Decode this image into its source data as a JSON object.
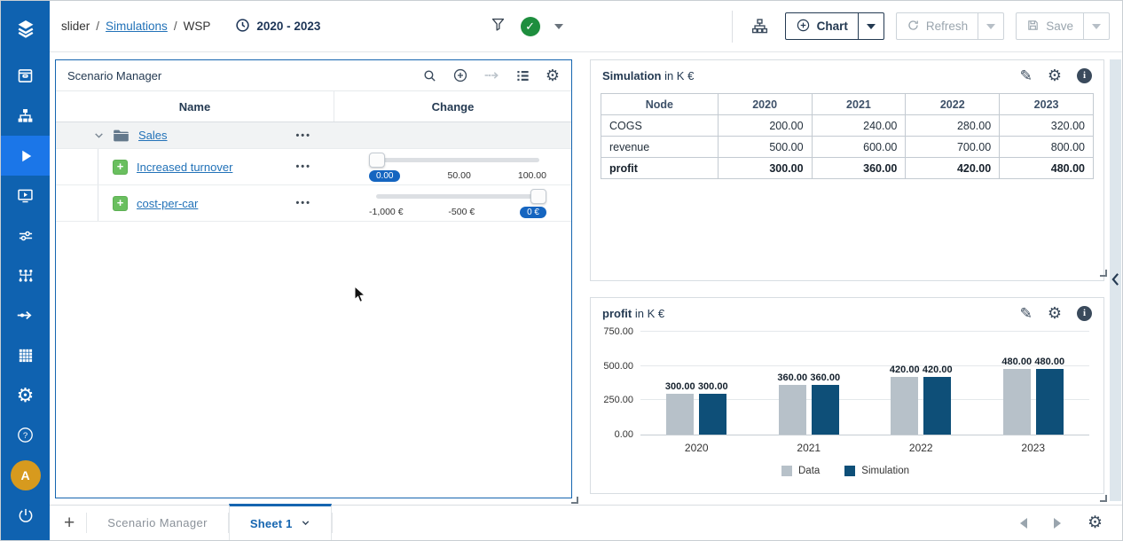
{
  "topbar": {
    "breadcrumb": {
      "part1": "slider",
      "sep1": "/",
      "link": "Simulations",
      "sep2": "/",
      "part2": "WSP"
    },
    "period": "2020 - 2023",
    "buttons": {
      "chart": "Chart",
      "refresh": "Refresh",
      "save": "Save"
    }
  },
  "sidebar": {
    "avatar_letter": "A",
    "items": [
      {
        "icon": "logo-layers",
        "active": false
      },
      {
        "icon": "inbox",
        "active": false
      },
      {
        "icon": "hierarchy",
        "active": false
      },
      {
        "icon": "play",
        "active": true
      },
      {
        "icon": "presentation-play",
        "active": false
      },
      {
        "icon": "sliders",
        "active": false
      },
      {
        "icon": "node-tree",
        "active": false
      },
      {
        "icon": "flow-arrow",
        "active": false
      },
      {
        "icon": "grid",
        "active": false
      },
      {
        "icon": "settings-gear",
        "active": false
      }
    ],
    "bottom_items": [
      {
        "icon": "help"
      },
      {
        "icon": "avatar"
      },
      {
        "icon": "power"
      }
    ]
  },
  "scenario_panel": {
    "title": "Scenario Manager",
    "columns": {
      "name": "Name",
      "change": "Change"
    },
    "menu_dots": "•••",
    "tree": [
      {
        "type": "folder",
        "label": "Sales"
      },
      {
        "type": "leaf",
        "label": "Increased turnover",
        "slider": {
          "labels": [
            "0.00",
            "50.00",
            "100.00"
          ],
          "active_index": 0,
          "handle": "left"
        }
      },
      {
        "type": "leaf",
        "label": "cost-per-car",
        "slider": {
          "labels": [
            "-1,000 €",
            "-500 €",
            "0 €"
          ],
          "active_index": 2,
          "handle": "right"
        }
      }
    ]
  },
  "simulation_panel": {
    "title": "Simulation",
    "title_unit": "in K €",
    "table": {
      "columns": [
        "Node",
        "2020",
        "2021",
        "2022",
        "2023"
      ],
      "rows": [
        {
          "name": "COGS",
          "values": [
            "200.00",
            "240.00",
            "280.00",
            "320.00"
          ],
          "bold": false
        },
        {
          "name": "revenue",
          "values": [
            "500.00",
            "600.00",
            "700.00",
            "800.00"
          ],
          "bold": false
        },
        {
          "name": "profit",
          "values": [
            "300.00",
            "360.00",
            "420.00",
            "480.00"
          ],
          "bold": true
        }
      ]
    }
  },
  "profit_panel": {
    "title": "profit",
    "title_unit": "in K €"
  },
  "chart_data": {
    "type": "bar",
    "title": "profit in K €",
    "categories": [
      "2020",
      "2021",
      "2022",
      "2023"
    ],
    "series": [
      {
        "name": "Data",
        "color": "#b7c1c9",
        "values": [
          300,
          360,
          420,
          480
        ]
      },
      {
        "name": "Simulation",
        "color": "#0e4f78",
        "values": [
          300,
          360,
          420,
          480
        ]
      }
    ],
    "ylim": [
      0,
      750
    ],
    "yticks": [
      0,
      250,
      500,
      750
    ],
    "ytick_labels": [
      "0.00",
      "250.00",
      "500.00",
      "750.00"
    ],
    "grid": true,
    "data_labels": true,
    "legend_position": "bottom"
  },
  "bottombar": {
    "tabs": [
      {
        "label": "Scenario Manager",
        "active": false
      },
      {
        "label": "Sheet 1",
        "active": true
      }
    ]
  },
  "colors": {
    "sidebar": "#0f62b0",
    "sidebar_active": "#1b76e8",
    "accent": "#1565b0",
    "link": "#2272b8",
    "bar_data": "#b7c1c9",
    "bar_simulation": "#0e4f78",
    "badge": "#1565c0",
    "success": "#1e8e3e",
    "avatar": "#d79a1e"
  }
}
